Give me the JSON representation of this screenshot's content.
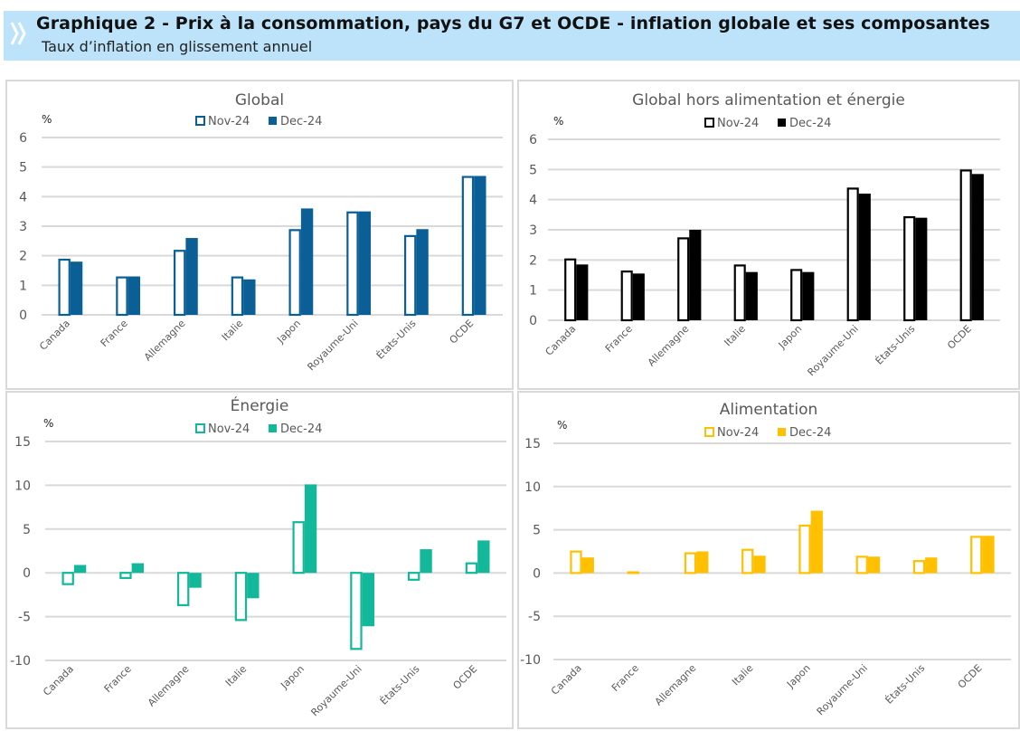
{
  "header": {
    "title": "Graphique 2 - Prix à la consommation, pays du G7 et OCDE - inflation globale et ses composantes",
    "subtitle": "Taux d’inflation en glissement annuel",
    "icon": "double-chevron-right-icon",
    "background_color": "#bde3fa"
  },
  "chart_data": [
    {
      "id": "global",
      "type": "bar",
      "title": "Global",
      "ylabel": "%",
      "xlabel": "",
      "ylim": [
        0,
        6
      ],
      "yticks": [
        0,
        1,
        2,
        3,
        4,
        5,
        6
      ],
      "grid": true,
      "legend": "top-center",
      "color": "#0a5f96",
      "categories": [
        "Canada",
        "France",
        "Allemagne",
        "Italie",
        "Japon",
        "Royaume-Uni",
        "États-Unis",
        "OCDE"
      ],
      "series": [
        {
          "name": "Nov-24",
          "style": "outline",
          "values": [
            1.9,
            1.3,
            2.2,
            1.3,
            2.9,
            3.5,
            2.7,
            4.7
          ]
        },
        {
          "name": "Dec-24",
          "style": "filled",
          "values": [
            1.8,
            1.3,
            2.6,
            1.2,
            3.6,
            3.5,
            2.9,
            4.7
          ]
        }
      ]
    },
    {
      "id": "core",
      "type": "bar",
      "title": "Global hors alimentation et énergie",
      "ylabel": "%",
      "xlabel": "",
      "ylim": [
        0,
        6
      ],
      "yticks": [
        0,
        1,
        2,
        3,
        4,
        5,
        6
      ],
      "grid": true,
      "legend": "top-center",
      "color": "#000000",
      "categories": [
        "Canada",
        "France",
        "Allemagne",
        "Italie",
        "Japon",
        "Royaume-Uni",
        "États-Unis",
        "OCDE"
      ],
      "series": [
        {
          "name": "Nov-24",
          "style": "outline",
          "values": [
            2.05,
            1.65,
            2.75,
            1.85,
            1.7,
            4.4,
            3.45,
            5.0
          ]
        },
        {
          "name": "Dec-24",
          "style": "filled",
          "values": [
            1.85,
            1.55,
            3.0,
            1.6,
            1.6,
            4.2,
            3.4,
            4.85
          ]
        }
      ]
    },
    {
      "id": "energy",
      "type": "bar",
      "title": "Énergie",
      "ylabel": "%",
      "xlabel": "",
      "ylim": [
        -10,
        15
      ],
      "yticks": [
        -10,
        -5,
        0,
        5,
        10,
        15
      ],
      "grid": true,
      "legend": "top-center",
      "color": "#13b89b",
      "categories": [
        "Canada",
        "France",
        "Allemagne",
        "Italie",
        "Japon",
        "Royaume-Uni",
        "États-Unis",
        "OCDE"
      ],
      "series": [
        {
          "name": "Nov-24",
          "style": "outline",
          "values": [
            -1.4,
            -0.7,
            -3.8,
            -5.5,
            5.9,
            -8.8,
            -0.9,
            1.2
          ]
        },
        {
          "name": "Dec-24",
          "style": "filled",
          "values": [
            0.9,
            1.1,
            -1.7,
            -2.9,
            10.1,
            -6.1,
            2.7,
            3.7
          ]
        }
      ]
    },
    {
      "id": "food",
      "type": "bar",
      "title": "Alimentation",
      "ylabel": "%",
      "xlabel": "",
      "ylim": [
        -10,
        15
      ],
      "yticks": [
        -10,
        -5,
        0,
        5,
        10,
        15
      ],
      "grid": true,
      "legend": "top-center",
      "color": "#ffc000",
      "categories": [
        "Canada",
        "France",
        "Allemagne",
        "Italie",
        "Japon",
        "Royaume-Uni",
        "États-Unis",
        "OCDE"
      ],
      "series": [
        {
          "name": "Nov-24",
          "style": "outline",
          "values": [
            2.6,
            0.2,
            2.4,
            2.8,
            5.6,
            2.0,
            1.5,
            4.3
          ]
        },
        {
          "name": "Dec-24",
          "style": "filled",
          "values": [
            1.8,
            0.0,
            2.5,
            2.0,
            7.2,
            1.9,
            1.8,
            4.3
          ]
        }
      ]
    }
  ]
}
